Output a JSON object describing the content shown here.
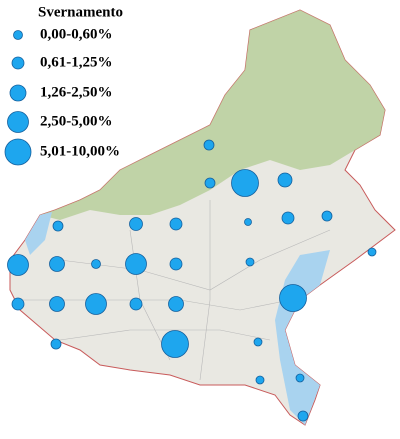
{
  "legend": {
    "title": "Svernamento",
    "classes": [
      "0,00-0,60%",
      "0,61-1,25%",
      "1,26-2,50%",
      "2,50-5,00%",
      "5,01-10,00%"
    ]
  }
}
